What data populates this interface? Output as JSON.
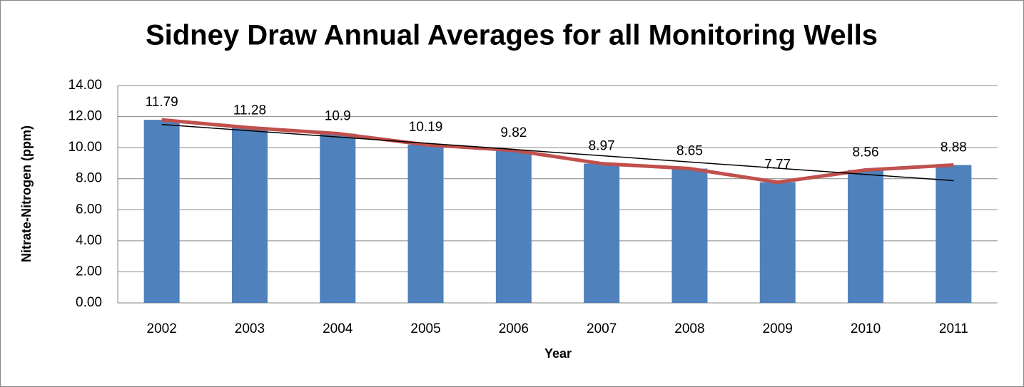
{
  "chart_data": {
    "type": "bar",
    "title": "Sidney Draw Annual Averages for all Monitoring Wells",
    "x_label": "Year",
    "y_label": "Nitrate-Nitrogen (ppm)",
    "categories": [
      "2002",
      "2003",
      "2004",
      "2005",
      "2006",
      "2007",
      "2008",
      "2009",
      "2010",
      "2011"
    ],
    "values": [
      11.79,
      11.28,
      10.9,
      10.19,
      9.82,
      8.97,
      8.65,
      7.77,
      8.56,
      8.88
    ],
    "color": "#4f81bd",
    "line_color": "#c0504d",
    "trendline": true,
    "trendline_color": "#000000",
    "data_labels": true,
    "ylim": [
      0,
      14
    ],
    "yticks": [
      {
        "value": 0,
        "label": "0.00"
      },
      {
        "value": 2,
        "label": "2.00"
      },
      {
        "value": 4,
        "label": "4.00"
      },
      {
        "value": 6,
        "label": "6.00"
      },
      {
        "value": 8,
        "label": "8.00"
      },
      {
        "value": 10,
        "label": "10.00"
      },
      {
        "value": 12,
        "label": "12.00"
      },
      {
        "value": 14,
        "label": "14.00"
      }
    ],
    "grid": true
  }
}
